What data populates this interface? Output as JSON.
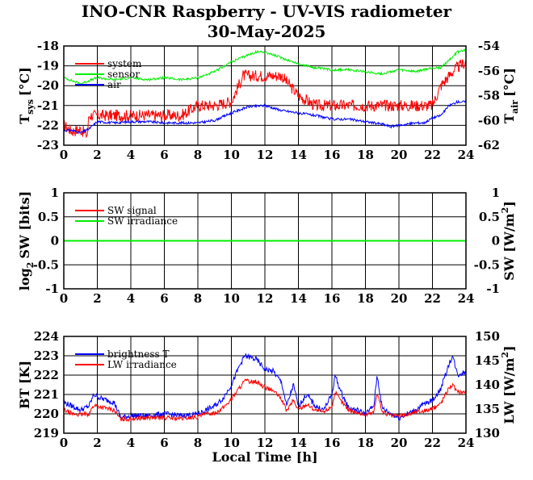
{
  "title": "INO-CNR Raspberry - UV-VIS radiometer",
  "subtitle": "30-May-2025",
  "colors": {
    "red": "#ff0000",
    "green": "#00ee00",
    "blue": "#0000ff"
  },
  "chart_data": [
    {
      "type": "line",
      "panel": "temperature",
      "ylabel_main": "T",
      "ylabel_sub": "sys",
      "ylabel_unit": "[°C]",
      "y2label_main": "T",
      "y2label_sub": "air",
      "y2label_unit": "[°C]",
      "xlim": [
        0,
        24
      ],
      "ylim": [
        -23,
        -18
      ],
      "y2lim": [
        -62,
        -54
      ],
      "xticks": [
        "0",
        "2",
        "4",
        "6",
        "8",
        "10",
        "12",
        "14",
        "16",
        "18",
        "20",
        "22",
        "24"
      ],
      "yticks": [
        "-23",
        "-22",
        "-21",
        "-20",
        "-19",
        "-18"
      ],
      "y2ticks": [
        "-62",
        "-60",
        "-58",
        "-56",
        "-54"
      ],
      "grid": true,
      "legend": "top-left",
      "series": [
        {
          "name": "system",
          "axis": "left",
          "color": "#ff0000",
          "x": [
            0,
            0.5,
            1,
            1.4,
            1.5,
            2,
            3,
            4,
            5,
            6,
            7,
            8,
            9,
            10,
            10.7,
            11,
            12,
            13,
            14,
            15,
            16,
            17,
            18,
            19,
            20,
            21,
            22,
            22.5,
            23,
            23.3,
            24
          ],
          "y": [
            -22,
            -22.3,
            -22.2,
            -22.5,
            -21.5,
            -21.5,
            -21.5,
            -21.5,
            -21.5,
            -21.5,
            -21.5,
            -21,
            -21,
            -20.8,
            -19.5,
            -19.5,
            -19.5,
            -19.5,
            -20.5,
            -21,
            -21,
            -21,
            -21,
            -21,
            -21,
            -21,
            -21,
            -20,
            -19.5,
            -19.2,
            -18.8
          ],
          "band": 0.6
        },
        {
          "name": "sensor",
          "axis": "left",
          "color": "#00ee00",
          "x": [
            0,
            1,
            2,
            3,
            4,
            5,
            6,
            7,
            8,
            9,
            10,
            11,
            11.5,
            12,
            13,
            14,
            15,
            16,
            17,
            18,
            19,
            20,
            21,
            22,
            22.5,
            23,
            23.5,
            24
          ],
          "y": [
            -19.6,
            -19.9,
            -19.6,
            -19.7,
            -19.6,
            -19.7,
            -19.6,
            -19.7,
            -19.6,
            -19.3,
            -18.8,
            -18.45,
            -18.3,
            -18.3,
            -18.6,
            -18.9,
            -19.1,
            -19.2,
            -19.2,
            -19.3,
            -19.4,
            -19.2,
            -19.3,
            -19.1,
            -19.1,
            -18.7,
            -18.3,
            -18.2
          ],
          "band": 0.12
        },
        {
          "name": "air",
          "axis": "right",
          "color": "#0000ff",
          "x": [
            0,
            0.5,
            1,
            1.5,
            2,
            3,
            4,
            5,
            6,
            7,
            8,
            9,
            10,
            11,
            12,
            13,
            14,
            15,
            16,
            17,
            18,
            19,
            19.5,
            20,
            21,
            21.5,
            22,
            22.5,
            23,
            23.5,
            24
          ],
          "y": [
            -60.8,
            -60.8,
            -61,
            -60.7,
            -60.1,
            -60.2,
            -60.1,
            -60.1,
            -60.2,
            -60.2,
            -60.2,
            -60,
            -59.4,
            -58.9,
            -58.8,
            -59.2,
            -59.4,
            -59.6,
            -59.9,
            -59.9,
            -60.1,
            -60.3,
            -60.5,
            -60.4,
            -60.2,
            -60.2,
            -59.8,
            -59.6,
            -58.8,
            -58.5,
            -58.5
          ],
          "band": 0.2
        }
      ]
    },
    {
      "type": "line",
      "panel": "shortwave",
      "ylabel_main": "log",
      "ylabel_sub": "2",
      "ylabel_unit": "SW [bits]",
      "y2label_main": "SW [W/m",
      "y2label_sup": "2",
      "y2label_end": "]",
      "xlim": [
        0,
        24
      ],
      "ylim": [
        -1,
        1
      ],
      "y2lim": [
        -1,
        1
      ],
      "xticks": [
        "0",
        "2",
        "4",
        "6",
        "8",
        "10",
        "12",
        "14",
        "16",
        "18",
        "20",
        "22",
        "24"
      ],
      "yticks": [
        "-1",
        "-0.5",
        "0",
        "0.5",
        "1"
      ],
      "y2ticks": [
        "-1",
        "-0.5",
        "0",
        "0.5",
        "1"
      ],
      "grid": true,
      "legend": "top-left",
      "series": [
        {
          "name": "SW signal",
          "axis": "left",
          "color": "#ff0000",
          "x": [
            0,
            24
          ],
          "y": [
            0,
            0
          ]
        },
        {
          "name": "SW irradiance",
          "axis": "right",
          "color": "#00ee00",
          "x": [
            0,
            24
          ],
          "y": [
            0,
            0
          ]
        }
      ]
    },
    {
      "type": "line",
      "panel": "longwave",
      "ylabel": "BT [K]",
      "y2label_main": "LW [W/m",
      "y2label_sup": "2",
      "y2label_end": "]",
      "xlabel": "Local Time [h]",
      "xlim": [
        0,
        24
      ],
      "ylim": [
        219,
        224
      ],
      "y2lim": [
        130,
        150
      ],
      "xticks": [
        "0",
        "2",
        "4",
        "6",
        "8",
        "10",
        "12",
        "14",
        "16",
        "18",
        "20",
        "22",
        "24"
      ],
      "yticks": [
        "219",
        "220",
        "221",
        "222",
        "223",
        "224"
      ],
      "y2ticks": [
        "130",
        "135",
        "140",
        "145",
        "150"
      ],
      "grid": true,
      "legend": "top-left",
      "series": [
        {
          "name": "brightness T",
          "axis": "left",
          "color": "#0000ff",
          "x": [
            0,
            0.5,
            1,
            1.5,
            1.8,
            2.2,
            3,
            3.4,
            4,
            5,
            6,
            7,
            8,
            8.5,
            9,
            9.5,
            10,
            10.5,
            10.8,
            11.5,
            12,
            12.5,
            13,
            13.3,
            13.7,
            14,
            14.5,
            15,
            15.5,
            16,
            16.2,
            16.5,
            17,
            17.5,
            18,
            18.5,
            18.7,
            19,
            19.5,
            20,
            20.5,
            21,
            21.5,
            22,
            22.5,
            23,
            23.2,
            23.5,
            24
          ],
          "y": [
            220.6,
            220.4,
            220.2,
            220.4,
            221,
            220.8,
            220.6,
            219.8,
            219.9,
            219.9,
            220,
            219.9,
            220,
            220.2,
            220.4,
            220.8,
            221.5,
            222.5,
            223,
            222.8,
            222.3,
            222.2,
            221.6,
            220.4,
            221.5,
            220.4,
            221,
            220.4,
            220.2,
            221,
            222,
            221.2,
            220.3,
            220.2,
            220,
            220.4,
            222,
            220.3,
            220,
            219.8,
            220,
            220.2,
            220.5,
            220.7,
            221.3,
            222.6,
            223,
            222,
            222.2
          ],
          "band": 0.28
        },
        {
          "name": "LW irradiance",
          "axis": "right",
          "color": "#ff0000",
          "x": [
            0,
            0.5,
            1,
            1.5,
            1.8,
            2.2,
            3,
            3.4,
            4,
            5,
            6,
            7,
            8,
            8.5,
            9,
            9.5,
            10,
            10.5,
            10.8,
            11.5,
            12,
            12.5,
            13,
            13.3,
            13.7,
            14,
            14.5,
            15,
            15.5,
            16,
            16.2,
            16.5,
            17,
            17.5,
            18,
            18.5,
            18.7,
            19,
            19.5,
            20,
            20.5,
            21,
            21.5,
            22,
            22.5,
            23,
            23.2,
            23.5,
            24
          ],
          "y": [
            134.8,
            134,
            133.8,
            134,
            135.8,
            135.4,
            134.8,
            132.8,
            133,
            133.2,
            133.2,
            133,
            133.4,
            134,
            134.2,
            135.2,
            137,
            139.5,
            140.8,
            140.6,
            139.5,
            138.8,
            137,
            134.6,
            136.8,
            134.8,
            136,
            134.8,
            134.3,
            135.6,
            138.4,
            136.8,
            134.8,
            134.3,
            133.8,
            134.3,
            138.6,
            134.4,
            133.6,
            133.6,
            133.8,
            134.4,
            134.6,
            135,
            136.2,
            139.5,
            140,
            138.4,
            138.6
          ],
          "band": 0.9
        }
      ]
    }
  ]
}
